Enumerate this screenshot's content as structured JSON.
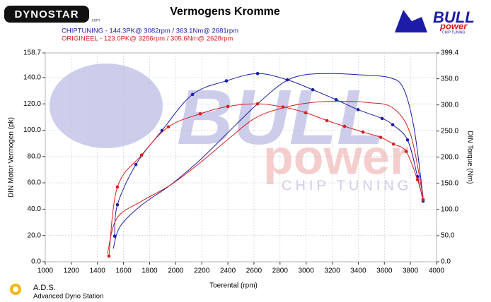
{
  "chart_data": {
    "type": "line",
    "title": "Vermogens Kromme",
    "legend": [
      {
        "text": "CHIPTUNING  - 144.3PK@ 3082rpm / 363.1Nm@ 2681rpm",
        "color": "#1c1ca8"
      },
      {
        "text": "ORIGINEEL  - 123.0PK@ 3256rpm / 305.6Nm@ 2628rpm",
        "color": "#d42020"
      }
    ],
    "xlabel": "Toerental (rpm)",
    "ylabel": "DIN Motor Vermogen (pk)",
    "y2label": "DIN Torque (Nm)",
    "xlim": [
      1000,
      4000
    ],
    "xticks": [
      1000,
      1200,
      1400,
      1600,
      1800,
      2000,
      2200,
      2400,
      2600,
      2800,
      3000,
      3200,
      3400,
      3600,
      3800,
      4000
    ],
    "ylim": [
      0,
      158.7
    ],
    "yticks": [
      {
        "value": 0,
        "label": "0.0"
      },
      {
        "value": 20,
        "label": "20.0"
      },
      {
        "value": 40,
        "label": "40.0"
      },
      {
        "value": 60,
        "label": "60.0"
      },
      {
        "value": 80,
        "label": "80.0"
      },
      {
        "value": 100,
        "label": "100.0"
      },
      {
        "value": 120,
        "label": "120.0"
      },
      {
        "value": 140,
        "label": "140.0"
      },
      158.7
    ],
    "y2lim": [
      0,
      399.4
    ],
    "y2ticks": [
      {
        "value": 0,
        "label": "0.0"
      },
      {
        "value": 50,
        "label": "50.0"
      },
      {
        "value": 100,
        "label": "100.0"
      },
      {
        "value": 150,
        "label": "150.0"
      },
      {
        "value": 200,
        "label": "200.0"
      },
      {
        "value": 250,
        "label": "250.0"
      },
      {
        "value": 300,
        "label": "300.0"
      },
      {
        "value": 350,
        "label": "350.0"
      },
      399.4
    ],
    "grid": true,
    "series": [
      {
        "color": "#1c1ca8",
        "axis": "y",
        "markers": false,
        "x": [
          1521,
          1575,
          1738,
          1955,
          2172,
          2389,
          2606,
          2823,
          2986,
          3203,
          3420,
          3637,
          3745,
          3827,
          3897
        ],
        "values": [
          10,
          27,
          43,
          58,
          76,
          97,
          118,
          136,
          142,
          143,
          142,
          140,
          132,
          102,
          49
        ]
      },
      {
        "color": "#1c1ca8",
        "axis": "y2",
        "markers": true,
        "x": [
          1532,
          1553,
          1695,
          1895,
          2129,
          2389,
          2628,
          2856,
          3051,
          3230,
          3398,
          3583,
          3664,
          3778,
          3854,
          3897
        ],
        "values": [
          49,
          109,
          186,
          251,
          320,
          346,
          360,
          348,
          329,
          310,
          291,
          274,
          262,
          233,
          163,
          116
        ]
      },
      {
        "color": "#d42020",
        "axis": "y",
        "markers": false,
        "x": [
          1477,
          1548,
          1738,
          1955,
          2172,
          2389,
          2606,
          2823,
          3040,
          3257,
          3474,
          3664,
          3800,
          3897
        ],
        "values": [
          6,
          33,
          46,
          58,
          74,
          92,
          109,
          117,
          121,
          122,
          121,
          117,
          97,
          49
        ]
      },
      {
        "color": "#d42020",
        "axis": "y2",
        "markers": true,
        "x": [
          1488,
          1553,
          1738,
          1944,
          2188,
          2400,
          2628,
          2823,
          2997,
          3160,
          3295,
          3436,
          3572,
          3670,
          3767,
          3854,
          3897
        ],
        "values": [
          11,
          143,
          204,
          258,
          283,
          297,
          302,
          296,
          285,
          270,
          259,
          248,
          238,
          225,
          211,
          157,
          119
        ]
      }
    ]
  },
  "branding": {
    "dynostar": "DYNOSTAR",
    "dynostar_suffix": ".com",
    "bull": "BULL",
    "power": "power",
    "chip_tuning": "CHIP TUNING",
    "ads": "A.D.S.",
    "ads_full": "Advanced Dyno Station"
  }
}
